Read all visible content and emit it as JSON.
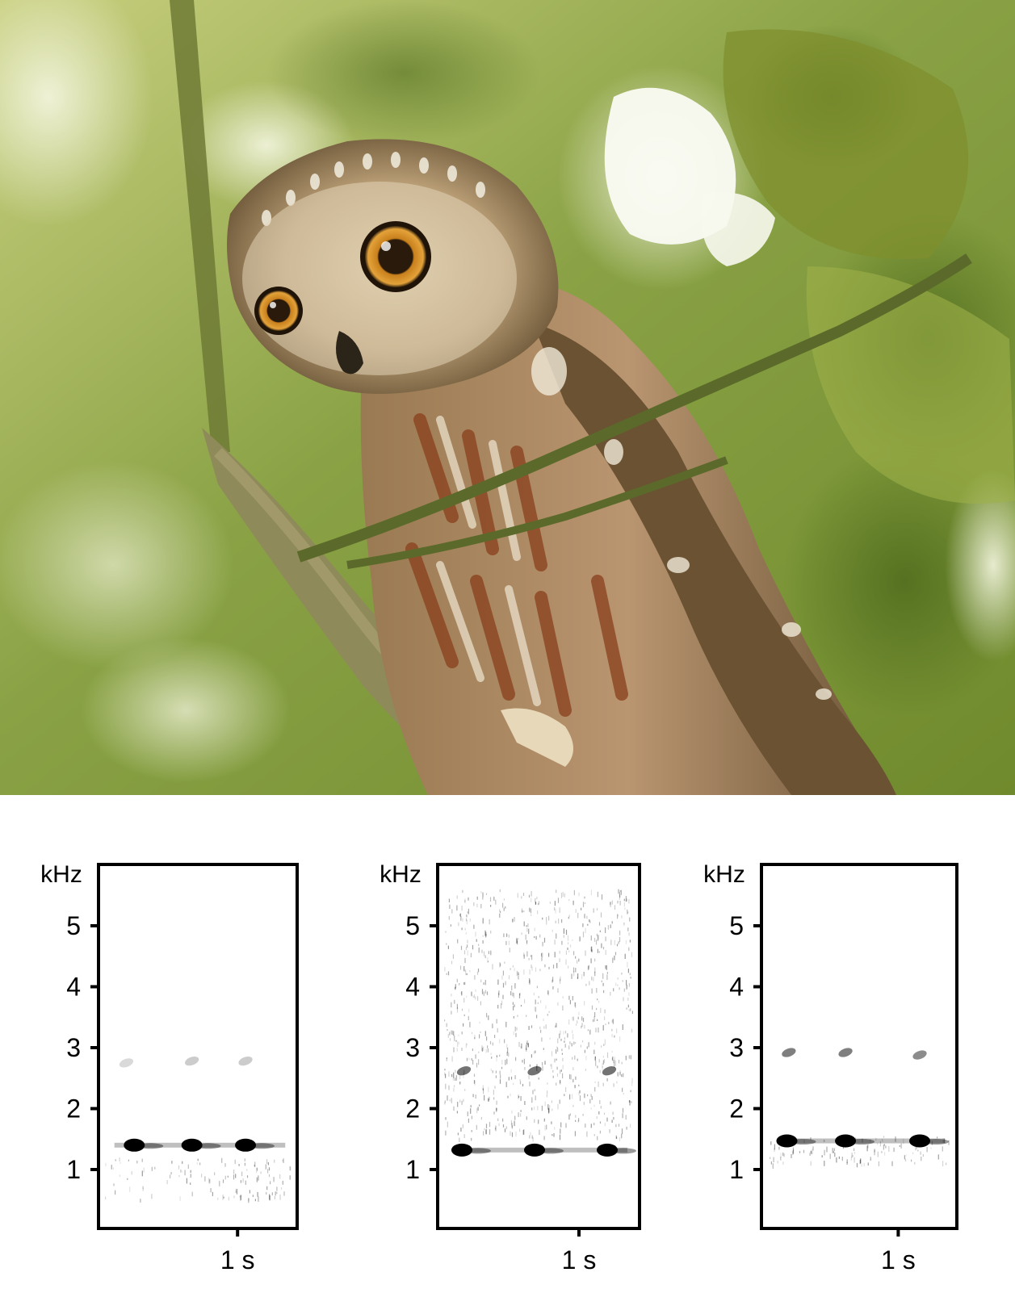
{
  "photo": {
    "subject": "owl-perched-in-foliage"
  },
  "chart_data": [
    {
      "type": "heatmap",
      "title": "",
      "ylabel": "kHz",
      "xlabel": "",
      "ylim": [
        0,
        6
      ],
      "yticks": [
        1,
        2,
        3,
        4,
        5
      ],
      "scale_bar_label": "1 s",
      "notes": [
        {
          "x": 0.18,
          "y": 1.4,
          "intensity": 1.0
        },
        {
          "x": 0.47,
          "y": 1.4,
          "intensity": 1.0
        },
        {
          "x": 0.74,
          "y": 1.4,
          "intensity": 1.0
        }
      ],
      "harmonics": [
        {
          "x": 0.14,
          "y": 2.75,
          "intensity": 0.15
        },
        {
          "x": 0.47,
          "y": 2.78,
          "intensity": 0.2
        },
        {
          "x": 0.74,
          "y": 2.78,
          "intensity": 0.2
        }
      ],
      "noise": {
        "ymin": 0.5,
        "ymax": 1.2,
        "intensity": 0.2
      }
    },
    {
      "type": "heatmap",
      "title": "",
      "ylabel": "kHz",
      "xlabel": "",
      "ylim": [
        0,
        6
      ],
      "yticks": [
        1,
        2,
        3,
        4,
        5
      ],
      "scale_bar_label": "1 s",
      "notes": [
        {
          "x": 0.12,
          "y": 1.32,
          "intensity": 1.0
        },
        {
          "x": 0.48,
          "y": 1.32,
          "intensity": 1.0
        },
        {
          "x": 0.84,
          "y": 1.32,
          "intensity": 1.0
        }
      ],
      "harmonics": [
        {
          "x": 0.13,
          "y": 2.62,
          "intensity": 0.55
        },
        {
          "x": 0.48,
          "y": 2.62,
          "intensity": 0.55
        },
        {
          "x": 0.85,
          "y": 2.62,
          "intensity": 0.55
        }
      ],
      "noise": {
        "ymin": 1.5,
        "ymax": 5.6,
        "intensity": 0.25
      }
    },
    {
      "type": "heatmap",
      "title": "",
      "ylabel": "kHz",
      "xlabel": "",
      "ylim": [
        0,
        6
      ],
      "yticks": [
        1,
        2,
        3,
        4,
        5
      ],
      "scale_bar_label": "1 s",
      "notes": [
        {
          "x": 0.13,
          "y": 1.47,
          "intensity": 1.0
        },
        {
          "x": 0.43,
          "y": 1.47,
          "intensity": 1.0
        },
        {
          "x": 0.81,
          "y": 1.47,
          "intensity": 1.0
        }
      ],
      "harmonics": [
        {
          "x": 0.14,
          "y": 2.92,
          "intensity": 0.5
        },
        {
          "x": 0.43,
          "y": 2.92,
          "intensity": 0.5
        },
        {
          "x": 0.81,
          "y": 2.88,
          "intensity": 0.45
        }
      ],
      "noise": {
        "ymin": 1.1,
        "ymax": 1.55,
        "intensity": 0.3
      }
    }
  ]
}
